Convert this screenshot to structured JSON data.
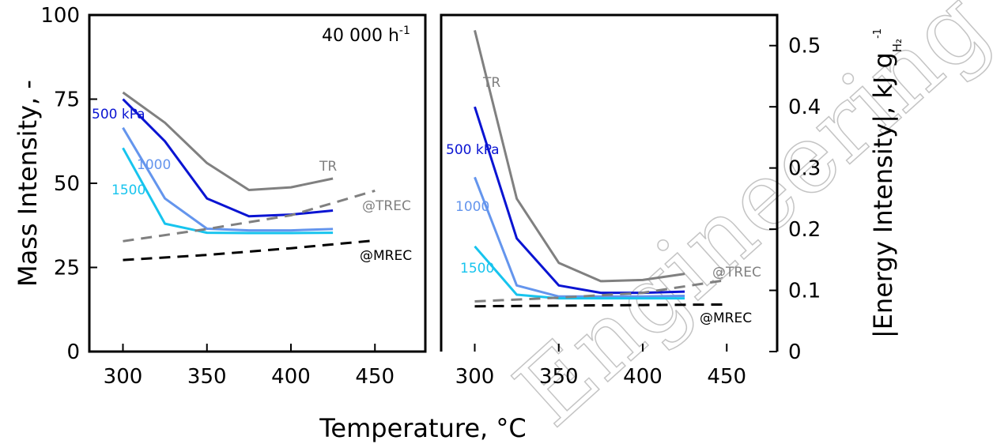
{
  "xlabel": "Temperature, °C",
  "watermark": "Engineering Research",
  "chart_data": [
    {
      "type": "line",
      "ylabel": "Mass Intensity, -",
      "xlim": [
        280,
        480
      ],
      "ylim": [
        0,
        100
      ],
      "xticks": [
        300,
        350,
        400,
        450
      ],
      "yticks": [
        0,
        25,
        50,
        75,
        100
      ],
      "condition_label": "40 000 h",
      "condition_sup": "-1",
      "series": [
        {
          "name": "TR",
          "color": "#808080",
          "dash": false,
          "x": [
            300,
            325,
            350,
            375,
            400,
            425
          ],
          "y": [
            77,
            68,
            56,
            48,
            48.8,
            51.4
          ]
        },
        {
          "name": "500 kPa",
          "color": "#0a14d2",
          "dash": false,
          "x": [
            300,
            325,
            350,
            375,
            400,
            425
          ],
          "y": [
            75,
            62.5,
            45.5,
            40.2,
            40.7,
            41.9
          ]
        },
        {
          "name": "1000",
          "color": "#6495ed",
          "dash": false,
          "x": [
            300,
            325,
            350,
            375,
            400,
            425
          ],
          "y": [
            66.5,
            45.5,
            36.5,
            36,
            36,
            36.4
          ]
        },
        {
          "name": "1500",
          "color": "#17c4ee",
          "dash": false,
          "x": [
            300,
            325,
            350,
            375,
            400,
            425
          ],
          "y": [
            60.5,
            38,
            35.3,
            35.2,
            35.2,
            35.3
          ]
        },
        {
          "name": "@TREC",
          "color": "#808080",
          "dash": true,
          "x": [
            300,
            350,
            400,
            450
          ],
          "y": [
            32.8,
            36.4,
            40.5,
            47.8
          ]
        },
        {
          "name": "@MREC",
          "color": "#000000",
          "dash": true,
          "x": [
            300,
            350,
            400,
            450
          ],
          "y": [
            27.2,
            28.7,
            30.7,
            33
          ]
        }
      ]
    },
    {
      "type": "line",
      "ylabel": "|Energy Intensity|, kJ g",
      "ylabel_sub": "H₂",
      "ylabel_sup": "-1",
      "xlim": [
        280,
        480
      ],
      "ylim": [
        0,
        0.55
      ],
      "xticks": [
        300,
        350,
        400,
        450
      ],
      "yticks": [
        "0",
        "0.1",
        "0.2",
        "0.3",
        "0.4",
        "0.5"
      ],
      "series": [
        {
          "name": "TR",
          "color": "#808080",
          "dash": false,
          "x": [
            300,
            325,
            350,
            375,
            400,
            425
          ],
          "y": [
            0.525,
            0.25,
            0.145,
            0.115,
            0.117,
            0.127
          ]
        },
        {
          "name": "500 kPa",
          "color": "#0a14d2",
          "dash": false,
          "x": [
            300,
            325,
            350,
            375,
            400,
            425
          ],
          "y": [
            0.4,
            0.185,
            0.108,
            0.096,
            0.096,
            0.098
          ]
        },
        {
          "name": "1000",
          "color": "#6495ed",
          "dash": false,
          "x": [
            300,
            325,
            350,
            375,
            400,
            425
          ],
          "y": [
            0.285,
            0.108,
            0.09,
            0.09,
            0.09,
            0.091
          ]
        },
        {
          "name": "1500",
          "color": "#17c4ee",
          "dash": false,
          "x": [
            300,
            325,
            350,
            375,
            400,
            425
          ],
          "y": [
            0.172,
            0.093,
            0.087,
            0.087,
            0.087,
            0.087
          ]
        },
        {
          "name": "@TREC",
          "color": "#808080",
          "dash": true,
          "x": [
            300,
            350,
            400,
            450
          ],
          "y": [
            0.082,
            0.088,
            0.096,
            0.117
          ]
        },
        {
          "name": "@MREC",
          "color": "#000000",
          "dash": true,
          "x": [
            300,
            350,
            400,
            450
          ],
          "y": [
            0.074,
            0.075,
            0.076,
            0.077
          ]
        }
      ]
    }
  ]
}
